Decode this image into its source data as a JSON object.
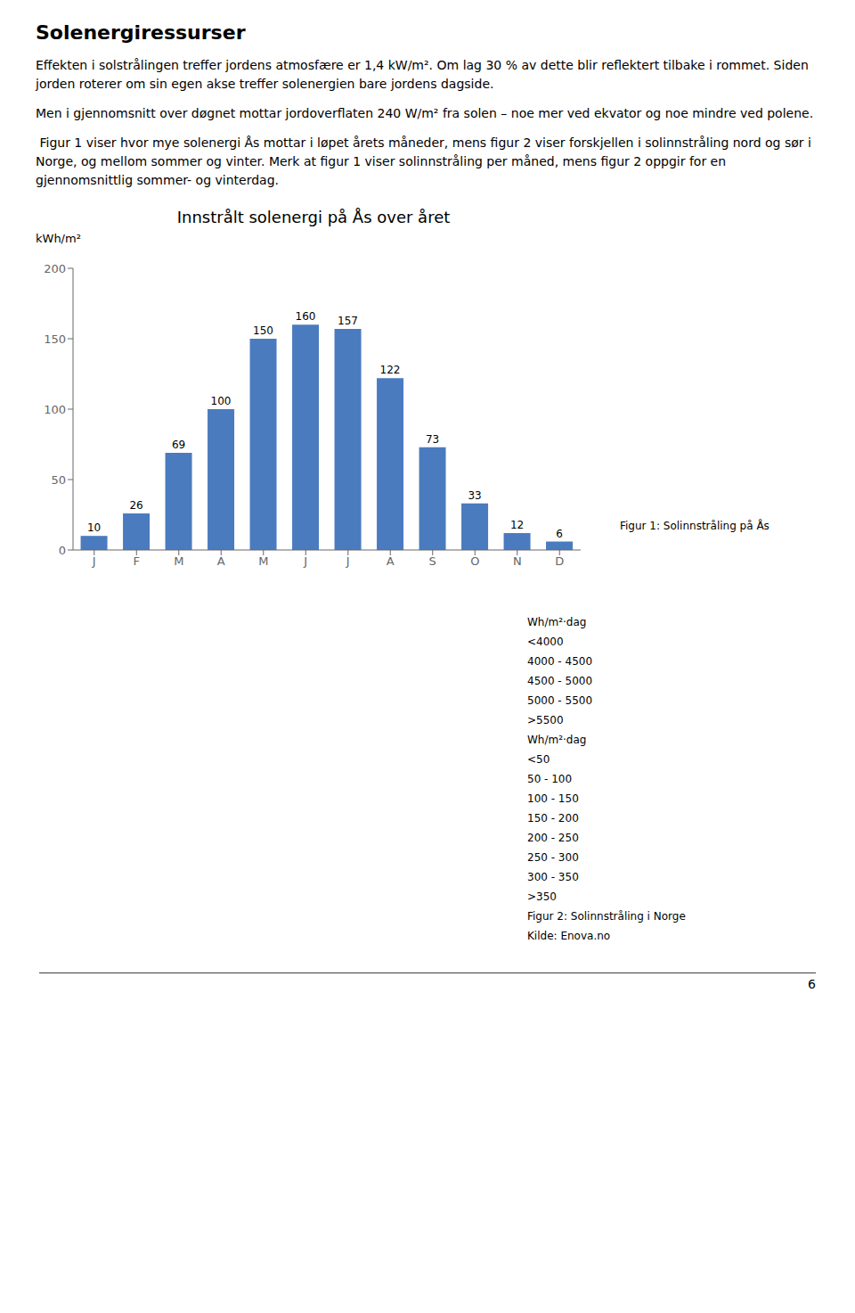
{
  "chart_data": {
    "type": "bar",
    "title": "Innstrålt solenergi på Ås over året",
    "ylabel": "kWh/m²",
    "categories": [
      "J",
      "F",
      "M",
      "A",
      "M",
      "J",
      "J",
      "A",
      "S",
      "O",
      "N",
      "D"
    ],
    "values": [
      10,
      26,
      69,
      100,
      150,
      160,
      157,
      122,
      73,
      33,
      12,
      6
    ],
    "color": "#4a7bbf",
    "ylim": [
      0,
      200
    ],
    "yticks": [
      0,
      50,
      100,
      150,
      200
    ],
    "data_labels": true,
    "grid": false,
    "annotations": [
      "Solenergiressurser",
      "Effekten i solstrålingen treffer jordens atmosfære er 1,4 kW/m². Om lag 30 % av dette blir reflektert tilbake i rommet. Siden jorden roterer om sin egen akse treffer solenergien bare jordens dagside.",
      "Men i gjennomsnitt over døgnet mottar jordoverflaten 240 W/m² fra solen – noe mer ved ekvator og noe mindre ved polene.",
      " Figur 1 viser hvor mye solenergi Ås mottar i løpet årets måneder, mens figur 2 viser forskjellen i solinnstråling nord og sør i Norge, og mellom sommer og vinter. Merk at figur 1 viser solinnstråling per måned, mens figur 2 oppgir for en gjennomsnittlig sommer- og vinterdag.",
      "Figur 1: Solinnstråling på Ås",
      "Wh/m²·dag",
      "<4000",
      "4000 - 4500",
      "4500 - 5000",
      "5000 - 5500",
      ">5500",
      "Wh/m²·dag",
      "<50",
      "50 - 100",
      "100 - 150",
      "150 - 200",
      "200 - 250",
      "250 - 300",
      "300 - 350",
      ">350",
      "Figur 2: Solinnstråling i Norge",
      "Kilde: Enova.no",
      "6"
    ]
  }
}
